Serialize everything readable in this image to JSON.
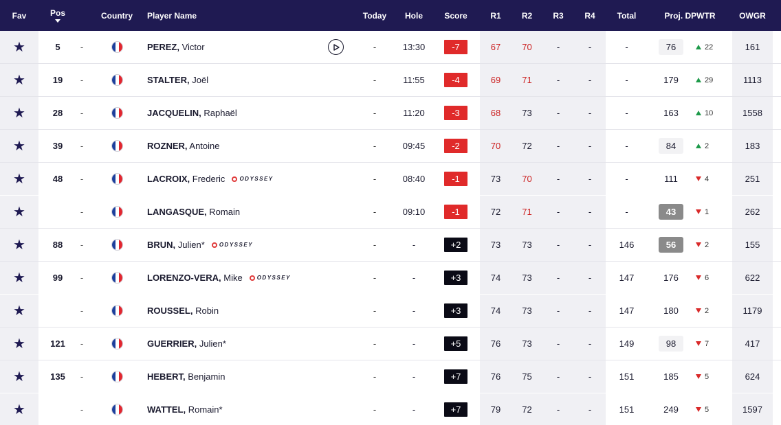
{
  "header": {
    "fav": "Fav",
    "pos": "Pos",
    "country": "Country",
    "player_name": "Player Name",
    "today": "Today",
    "hole": "Hole",
    "score": "Score",
    "r1": "R1",
    "r2": "R2",
    "r3": "R3",
    "r4": "R4",
    "total": "Total",
    "proj": "Proj. DPWTR",
    "owgr": "OWGR"
  },
  "colors": {
    "header_bg": "#1f1a52",
    "under_par": "#e02a2a",
    "over_par": "#0b0b16",
    "move_up": "#1e9a4a",
    "move_down": "#d92a2a"
  },
  "rows": [
    {
      "pos": "5",
      "dash": "-",
      "country": "FRA",
      "last": "PEREZ,",
      "first": "Victor",
      "sponsor": "",
      "play": true,
      "today": "-",
      "hole": "13:30",
      "score": "-7",
      "r1": "67",
      "r2": "70",
      "r3": "-",
      "r4": "-",
      "total": "-",
      "proj": "76",
      "proj_style": "boxed",
      "move": "22",
      "move_dir": "up",
      "owgr": "161",
      "r1_red": true,
      "r2_red": true
    },
    {
      "pos": "19",
      "dash": "-",
      "country": "FRA",
      "last": "STALTER,",
      "first": "Joël",
      "sponsor": "",
      "play": false,
      "today": "-",
      "hole": "11:55",
      "score": "-4",
      "r1": "69",
      "r2": "71",
      "r3": "-",
      "r4": "-",
      "total": "-",
      "proj": "179",
      "proj_style": "plain",
      "move": "29",
      "move_dir": "up",
      "owgr": "1113",
      "r1_red": true,
      "r2_red": true
    },
    {
      "pos": "28",
      "dash": "-",
      "country": "FRA",
      "last": "JACQUELIN,",
      "first": "Raphaël",
      "sponsor": "",
      "play": false,
      "today": "-",
      "hole": "11:20",
      "score": "-3",
      "r1": "68",
      "r2": "73",
      "r3": "-",
      "r4": "-",
      "total": "-",
      "proj": "163",
      "proj_style": "plain",
      "move": "10",
      "move_dir": "up",
      "owgr": "1558",
      "r1_red": true,
      "r2_red": false
    },
    {
      "pos": "39",
      "dash": "-",
      "country": "FRA",
      "last": "ROZNER,",
      "first": "Antoine",
      "sponsor": "",
      "play": false,
      "today": "-",
      "hole": "09:45",
      "score": "-2",
      "r1": "70",
      "r2": "72",
      "r3": "-",
      "r4": "-",
      "total": "-",
      "proj": "84",
      "proj_style": "boxed",
      "move": "2",
      "move_dir": "up",
      "owgr": "183",
      "r1_red": true,
      "r2_red": false
    },
    {
      "pos": "48",
      "dash": "-",
      "country": "FRA",
      "last": "LACROIX,",
      "first": "Frederic",
      "sponsor": "ODYSSEY",
      "play": false,
      "today": "-",
      "hole": "08:40",
      "score": "-1",
      "r1": "73",
      "r2": "70",
      "r3": "-",
      "r4": "-",
      "total": "-",
      "proj": "111",
      "proj_style": "plain",
      "move": "4",
      "move_dir": "down",
      "owgr": "251",
      "r1_red": false,
      "r2_red": true,
      "noline": true
    },
    {
      "pos": "",
      "dash": "-",
      "country": "FRA",
      "last": "LANGASQUE,",
      "first": "Romain",
      "sponsor": "",
      "play": false,
      "today": "-",
      "hole": "09:10",
      "score": "-1",
      "r1": "72",
      "r2": "71",
      "r3": "-",
      "r4": "-",
      "total": "-",
      "proj": "43",
      "proj_style": "dark",
      "move": "1",
      "move_dir": "down",
      "owgr": "262",
      "r1_red": false,
      "r2_red": true
    },
    {
      "pos": "88",
      "dash": "-",
      "country": "FRA",
      "last": "BRUN,",
      "first": "Julien*",
      "sponsor": "ODYSSEY",
      "play": false,
      "today": "-",
      "hole": "-",
      "score": "+2",
      "r1": "73",
      "r2": "73",
      "r3": "-",
      "r4": "-",
      "total": "146",
      "proj": "56",
      "proj_style": "dark",
      "move": "2",
      "move_dir": "down",
      "owgr": "155",
      "r1_red": false,
      "r2_red": false
    },
    {
      "pos": "99",
      "dash": "-",
      "country": "FRA",
      "last": "LORENZO-VERA,",
      "first": "Mike",
      "sponsor": "ODYSSEY",
      "play": false,
      "today": "-",
      "hole": "-",
      "score": "+3",
      "r1": "74",
      "r2": "73",
      "r3": "-",
      "r4": "-",
      "total": "147",
      "proj": "176",
      "proj_style": "plain",
      "move": "6",
      "move_dir": "down",
      "owgr": "622",
      "r1_red": false,
      "r2_red": false,
      "noline": true
    },
    {
      "pos": "",
      "dash": "-",
      "country": "FRA",
      "last": "ROUSSEL,",
      "first": "Robin",
      "sponsor": "",
      "play": false,
      "today": "-",
      "hole": "-",
      "score": "+3",
      "r1": "74",
      "r2": "73",
      "r3": "-",
      "r4": "-",
      "total": "147",
      "proj": "180",
      "proj_style": "plain",
      "move": "2",
      "move_dir": "down",
      "owgr": "1179",
      "r1_red": false,
      "r2_red": false
    },
    {
      "pos": "121",
      "dash": "-",
      "country": "FRA",
      "last": "GUERRIER,",
      "first": "Julien*",
      "sponsor": "",
      "play": false,
      "today": "-",
      "hole": "-",
      "score": "+5",
      "r1": "76",
      "r2": "73",
      "r3": "-",
      "r4": "-",
      "total": "149",
      "proj": "98",
      "proj_style": "boxed",
      "move": "7",
      "move_dir": "down",
      "owgr": "417",
      "r1_red": false,
      "r2_red": false
    },
    {
      "pos": "135",
      "dash": "-",
      "country": "FRA",
      "last": "HEBERT,",
      "first": "Benjamin",
      "sponsor": "",
      "play": false,
      "today": "-",
      "hole": "-",
      "score": "+7",
      "r1": "76",
      "r2": "75",
      "r3": "-",
      "r4": "-",
      "total": "151",
      "proj": "185",
      "proj_style": "plain",
      "move": "5",
      "move_dir": "down",
      "owgr": "624",
      "r1_red": false,
      "r2_red": false,
      "noline": true
    },
    {
      "pos": "",
      "dash": "-",
      "country": "FRA",
      "last": "WATTEL,",
      "first": "Romain*",
      "sponsor": "",
      "play": false,
      "today": "-",
      "hole": "-",
      "score": "+7",
      "r1": "79",
      "r2": "72",
      "r3": "-",
      "r4": "-",
      "total": "151",
      "proj": "249",
      "proj_style": "plain",
      "move": "5",
      "move_dir": "down",
      "owgr": "1597",
      "r1_red": false,
      "r2_red": false
    }
  ]
}
